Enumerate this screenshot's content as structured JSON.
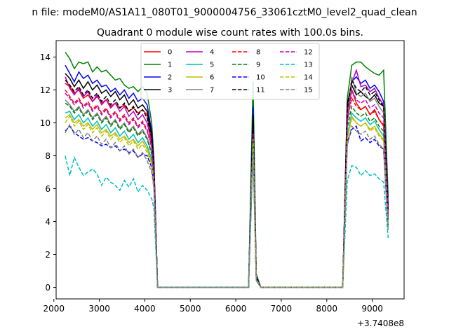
{
  "chart_data": {
    "type": "line",
    "suptitle": "n file: modeM0/AS1A11_080T01_9000004756_33061cztM0_level2_quad_clean",
    "title": "Quadrant 0 module wise count rates with 100.0s bins.",
    "xlabel": "",
    "ylabel": "",
    "x_offset_label": "+3.7408e8",
    "xlim": [
      2050,
      9700
    ],
    "ylim": [
      -0.7,
      15.0
    ],
    "x_ticks": [
      2000,
      3000,
      4000,
      5000,
      6000,
      7000,
      8000,
      9000
    ],
    "x_tick_labels": [
      "2000",
      "3000",
      "4000",
      "5000",
      "6000",
      "7000",
      "8000",
      "9000"
    ],
    "y_ticks": [
      0,
      2,
      4,
      6,
      8,
      10,
      12,
      14
    ],
    "y_tick_labels": [
      "0",
      "2",
      "4",
      "6",
      "8",
      "10",
      "12",
      "14"
    ],
    "legend_location": "top-center",
    "x": [
      2250,
      2350,
      2450,
      2550,
      2650,
      2750,
      2850,
      2950,
      3050,
      3150,
      3250,
      3350,
      3450,
      3550,
      3650,
      3750,
      3850,
      3950,
      4050,
      4150,
      4200,
      4280,
      6280,
      6380,
      6450,
      6550,
      8350,
      8450,
      8550,
      8650,
      8750,
      8850,
      8950,
      9050,
      9150,
      9250,
      9350
    ],
    "series": [
      {
        "name": "0",
        "color": "#ff0000",
        "dash": false,
        "values": [
          12.4,
          12.2,
          11.8,
          12.0,
          11.5,
          11.7,
          11.3,
          11.6,
          11.2,
          11.4,
          11.0,
          11.2,
          10.9,
          11.1,
          10.7,
          10.9,
          10.6,
          10.8,
          10.5,
          9.0,
          7.5,
          0.0,
          0.0,
          10.0,
          0.6,
          0.0,
          0.0,
          10.5,
          12.0,
          11.2,
          10.8,
          11.0,
          10.5,
          10.8,
          10.2,
          9.8,
          4.5
        ]
      },
      {
        "name": "1",
        "color": "#008000",
        "dash": false,
        "values": [
          14.3,
          13.9,
          13.3,
          13.7,
          13.6,
          13.7,
          13.1,
          13.4,
          13.1,
          13.2,
          12.9,
          12.6,
          12.7,
          12.3,
          12.1,
          12.2,
          11.9,
          12.2,
          11.8,
          10.0,
          7.8,
          0.0,
          0.0,
          12.5,
          0.8,
          0.0,
          0.0,
          11.5,
          13.5,
          13.7,
          13.7,
          13.4,
          13.2,
          13.0,
          12.9,
          13.2,
          5.5
        ]
      },
      {
        "name": "2",
        "color": "#0000ff",
        "dash": false,
        "values": [
          13.5,
          13.0,
          12.5,
          13.1,
          12.7,
          12.9,
          12.4,
          12.6,
          12.2,
          12.3,
          11.9,
          12.1,
          11.7,
          12.0,
          11.5,
          11.8,
          11.3,
          11.5,
          11.1,
          9.5,
          7.6,
          0.0,
          0.0,
          11.0,
          0.7,
          0.0,
          0.0,
          11.0,
          12.5,
          12.8,
          12.4,
          12.6,
          12.1,
          12.3,
          11.9,
          11.3,
          5.0
        ]
      },
      {
        "name": "3",
        "color": "#000000",
        "dash": false,
        "values": [
          13.0,
          12.7,
          12.2,
          12.6,
          12.1,
          12.5,
          12.0,
          12.3,
          11.8,
          12.0,
          11.6,
          11.9,
          11.4,
          11.7,
          11.1,
          11.4,
          10.9,
          11.1,
          10.7,
          9.3,
          7.4,
          0.0,
          0.0,
          10.5,
          0.6,
          0.0,
          0.0,
          11.2,
          12.3,
          11.7,
          11.9,
          11.6,
          11.4,
          11.7,
          11.2,
          11.0,
          4.8
        ]
      },
      {
        "name": "4",
        "color": "#bf00bf",
        "dash": false,
        "values": [
          12.8,
          12.1,
          11.7,
          12.1,
          11.6,
          11.9,
          11.3,
          11.7,
          11.1,
          11.4,
          10.9,
          11.2,
          10.7,
          11.0,
          10.4,
          10.7,
          10.2,
          10.5,
          10.0,
          8.8,
          7.2,
          0.0,
          0.0,
          9.6,
          0.6,
          0.0,
          0.0,
          10.7,
          12.4,
          13.2,
          12.2,
          12.3,
          11.9,
          12.1,
          11.5,
          11.1,
          4.6
        ]
      },
      {
        "name": "5",
        "color": "#00bfbf",
        "dash": false,
        "values": [
          10.6,
          10.7,
          10.2,
          10.5,
          10.0,
          10.3,
          9.8,
          10.1,
          9.6,
          9.9,
          9.4,
          9.7,
          9.2,
          9.5,
          9.0,
          9.3,
          8.8,
          9.1,
          8.6,
          7.8,
          6.5,
          0.0,
          0.0,
          8.6,
          0.5,
          0.0,
          0.0,
          9.2,
          10.6,
          10.3,
          10.1,
          10.3,
          9.9,
          10.1,
          9.6,
          9.2,
          4.0
        ]
      },
      {
        "name": "6",
        "color": "#bfbf00",
        "dash": false,
        "values": [
          10.3,
          10.5,
          10.0,
          10.2,
          9.8,
          10.0,
          9.6,
          9.9,
          9.4,
          9.6,
          9.2,
          9.4,
          9.0,
          9.2,
          8.8,
          9.0,
          8.6,
          8.9,
          8.4,
          7.6,
          6.3,
          0.0,
          0.0,
          8.8,
          0.5,
          0.0,
          0.0,
          9.0,
          10.4,
          10.0,
          9.8,
          10.0,
          9.6,
          9.8,
          9.3,
          9.0,
          3.8
        ]
      },
      {
        "name": "7",
        "color": "#808080",
        "dash": false,
        "values": [
          11.4,
          11.1,
          10.7,
          11.0,
          10.5,
          10.8,
          10.3,
          10.6,
          10.1,
          10.4,
          9.9,
          10.2,
          9.7,
          10.0,
          9.5,
          9.8,
          9.3,
          9.6,
          9.1,
          8.2,
          6.8,
          0.0,
          0.0,
          9.4,
          0.5,
          0.0,
          0.0,
          10.0,
          12.8,
          11.8,
          11.6,
          11.8,
          11.3,
          11.5,
          11.0,
          10.6,
          4.2
        ]
      },
      {
        "name": "8",
        "color": "#ff0000",
        "dash": true,
        "values": [
          12.0,
          11.6,
          11.2,
          11.5,
          11.0,
          11.3,
          10.8,
          11.1,
          10.6,
          10.9,
          10.4,
          10.7,
          10.2,
          10.5,
          10.0,
          10.3,
          9.8,
          10.1,
          9.6,
          8.6,
          7.0,
          0.0,
          0.0,
          9.5,
          0.5,
          0.0,
          0.0,
          10.2,
          11.5,
          11.0,
          10.8,
          11.0,
          10.5,
          10.7,
          10.2,
          9.9,
          4.4
        ]
      },
      {
        "name": "9",
        "color": "#008000",
        "dash": true,
        "values": [
          11.2,
          11.0,
          10.6,
          10.9,
          10.4,
          10.7,
          10.2,
          10.5,
          10.0,
          10.3,
          9.8,
          10.1,
          9.6,
          9.9,
          9.4,
          9.7,
          9.2,
          9.5,
          9.0,
          8.1,
          6.6,
          0.0,
          0.0,
          9.2,
          0.5,
          0.0,
          0.0,
          9.7,
          11.0,
          10.6,
          10.4,
          10.6,
          10.1,
          10.3,
          9.8,
          9.5,
          4.1
        ]
      },
      {
        "name": "10",
        "color": "#0000ff",
        "dash": true,
        "values": [
          9.5,
          9.8,
          9.4,
          9.2,
          9.0,
          9.1,
          8.9,
          8.8,
          8.6,
          8.7,
          8.5,
          8.6,
          8.3,
          8.4,
          8.2,
          8.3,
          7.9,
          8.1,
          8.0,
          7.3,
          6.2,
          0.0,
          0.0,
          8.5,
          0.5,
          0.0,
          0.0,
          8.8,
          9.6,
          9.8,
          8.9,
          9.1,
          8.8,
          9.0,
          8.6,
          8.4,
          3.6
        ]
      },
      {
        "name": "11",
        "color": "#000000",
        "dash": true,
        "values": [
          12.6,
          12.3,
          11.9,
          12.2,
          11.7,
          12.0,
          11.5,
          11.8,
          11.3,
          11.6,
          11.1,
          11.4,
          10.9,
          11.2,
          10.7,
          11.0,
          10.5,
          10.8,
          10.3,
          9.1,
          7.3,
          0.0,
          0.0,
          10.3,
          0.6,
          0.0,
          0.0,
          10.8,
          12.6,
          12.1,
          11.9,
          12.2,
          11.7,
          11.9,
          11.4,
          11.0,
          4.7
        ]
      },
      {
        "name": "12",
        "color": "#bf00bf",
        "dash": true,
        "values": [
          11.8,
          11.5,
          11.1,
          11.4,
          10.9,
          11.2,
          10.7,
          11.0,
          10.5,
          10.8,
          10.3,
          10.6,
          10.1,
          10.4,
          9.9,
          10.2,
          9.7,
          10.0,
          9.5,
          8.5,
          6.9,
          0.0,
          0.0,
          9.3,
          0.5,
          0.0,
          0.0,
          10.0,
          12.0,
          11.4,
          11.2,
          11.4,
          10.9,
          11.1,
          10.6,
          10.3,
          4.3
        ]
      },
      {
        "name": "13",
        "color": "#00bfbf",
        "dash": true,
        "values": [
          8.0,
          6.8,
          7.9,
          7.3,
          6.8,
          7.0,
          7.2,
          6.9,
          6.2,
          6.7,
          6.4,
          6.2,
          5.9,
          6.5,
          6.1,
          6.6,
          5.8,
          6.2,
          5.9,
          5.4,
          4.8,
          0.0,
          0.0,
          8.8,
          0.4,
          0.0,
          0.0,
          6.5,
          7.4,
          7.3,
          6.8,
          7.1,
          6.8,
          6.9,
          6.6,
          6.4,
          3.0
        ]
      },
      {
        "name": "14",
        "color": "#bfbf00",
        "dash": true,
        "values": [
          10.0,
          10.4,
          9.8,
          10.1,
          9.6,
          9.9,
          9.4,
          9.7,
          9.2,
          9.5,
          9.0,
          9.3,
          8.8,
          9.1,
          8.6,
          8.9,
          8.4,
          8.7,
          8.2,
          7.5,
          6.2,
          0.0,
          0.0,
          9.0,
          0.5,
          0.0,
          0.0,
          9.0,
          10.3,
          10.0,
          9.8,
          10.0,
          9.5,
          9.7,
          9.2,
          8.9,
          3.7
        ]
      },
      {
        "name": "15",
        "color": "#808080",
        "dash": true,
        "values": [
          9.4,
          9.9,
          9.3,
          9.6,
          9.1,
          9.4,
          8.9,
          9.2,
          8.7,
          9.0,
          8.5,
          8.8,
          8.3,
          8.6,
          8.1,
          8.4,
          7.9,
          8.2,
          7.7,
          7.0,
          6.0,
          0.0,
          0.0,
          8.3,
          0.4,
          0.0,
          0.0,
          8.6,
          9.8,
          9.5,
          9.3,
          9.5,
          9.0,
          9.2,
          8.7,
          8.4,
          3.5
        ]
      }
    ]
  }
}
